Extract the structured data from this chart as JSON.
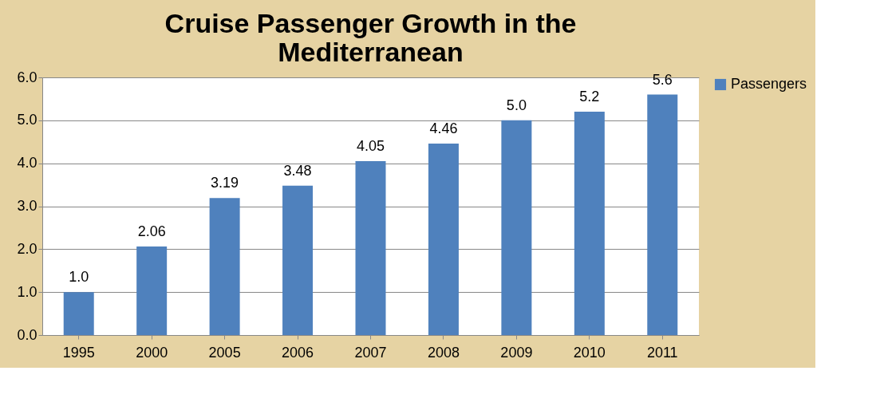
{
  "chart_data": {
    "type": "bar",
    "title": "Cruise Passenger Growth in the Mediterranean",
    "categories": [
      "1995",
      "2000",
      "2005",
      "2006",
      "2007",
      "2008",
      "2009",
      "2010",
      "2011"
    ],
    "series": [
      {
        "name": "Passengers",
        "color": "#4f81bd",
        "values": [
          1.0,
          2.06,
          3.19,
          3.48,
          4.05,
          4.46,
          5.0,
          5.2,
          5.6
        ],
        "value_labels": [
          "1.0",
          "2.06",
          "3.19",
          "3.48",
          "4.05",
          "4.46",
          "5.0",
          "5.2",
          "5.6"
        ]
      }
    ],
    "ylim": [
      0,
      6
    ],
    "yticks": [
      {
        "value": 0,
        "label": "0.0"
      },
      {
        "value": 1,
        "label": "1.0"
      },
      {
        "value": 2,
        "label": "2.0"
      },
      {
        "value": 3,
        "label": "3.0"
      },
      {
        "value": 4,
        "label": "4.0"
      },
      {
        "value": 5,
        "label": "5.0"
      },
      {
        "value": 6,
        "label": "6.0"
      }
    ],
    "grid": "y",
    "legend": "right"
  }
}
